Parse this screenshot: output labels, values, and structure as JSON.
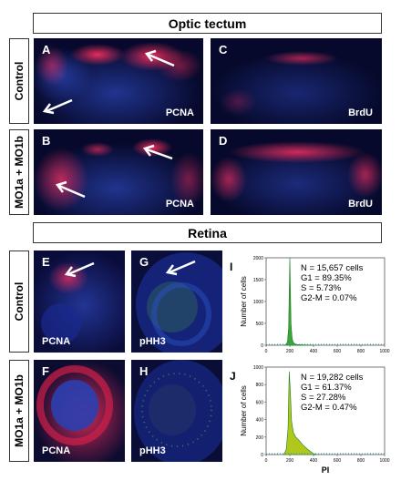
{
  "tectum": {
    "title": "Optic tectum",
    "rows": [
      "Control",
      "MO1a + MO1b"
    ],
    "panels": {
      "A": {
        "letter": "A",
        "stain": "PCNA"
      },
      "B": {
        "letter": "B",
        "stain": "PCNA"
      },
      "C": {
        "letter": "C",
        "stain": "BrdU"
      },
      "D": {
        "letter": "D",
        "stain": "BrdU"
      }
    }
  },
  "retina": {
    "title": "Retina",
    "rows": [
      "Control",
      "MO1a + MO1b"
    ],
    "panels": {
      "E": {
        "letter": "E",
        "stain": "PCNA"
      },
      "F": {
        "letter": "F",
        "stain": "PCNA"
      },
      "G": {
        "letter": "G",
        "stain": "pHH3"
      },
      "H": {
        "letter": "H",
        "stain": "pHH3"
      }
    }
  },
  "colors": {
    "pcna": "#e8204a",
    "nuclei": "#2a46c8",
    "brdu": "#e01f4d",
    "phh3": "#2c8a3c",
    "hist_fill": "#3aa53a",
    "hist_fill_mo": "#b0c81c"
  },
  "chart_data": [
    {
      "panel": "I",
      "type": "area",
      "ylabel": "Number of cells",
      "xlabel": "",
      "xlim": [
        0,
        1000
      ],
      "ylim": [
        0,
        2000
      ],
      "xticks": [
        0,
        200,
        400,
        600,
        800,
        1000
      ],
      "yticks": [
        0,
        500,
        1000,
        1500,
        2000
      ],
      "x": [
        150,
        170,
        180,
        190,
        195,
        200,
        205,
        210,
        220,
        230,
        250,
        300,
        350,
        400
      ],
      "y": [
        0,
        20,
        80,
        400,
        1200,
        2000,
        1300,
        500,
        150,
        60,
        20,
        10,
        5,
        0
      ],
      "stats": [
        "N = 15,657 cells",
        "G1 = 89.35%",
        "S = 5.73%",
        "G2-M = 0.07%"
      ]
    },
    {
      "panel": "J",
      "type": "area",
      "ylabel": "Number of cells",
      "xlabel": "PI",
      "xlim": [
        0,
        1000
      ],
      "ylim": [
        0,
        1000
      ],
      "xticks": [
        0,
        200,
        400,
        600,
        800,
        1000
      ],
      "yticks": [
        0,
        200,
        400,
        600,
        800,
        1000
      ],
      "x": [
        150,
        170,
        185,
        195,
        205,
        215,
        230,
        250,
        280,
        310,
        350,
        380,
        400,
        430
      ],
      "y": [
        0,
        60,
        300,
        950,
        700,
        380,
        250,
        200,
        160,
        110,
        60,
        30,
        10,
        0
      ],
      "stats": [
        "N = 19,282 cells",
        "G1 = 61.37%",
        "S = 27.28%",
        "G2-M = 0.47%"
      ]
    }
  ]
}
